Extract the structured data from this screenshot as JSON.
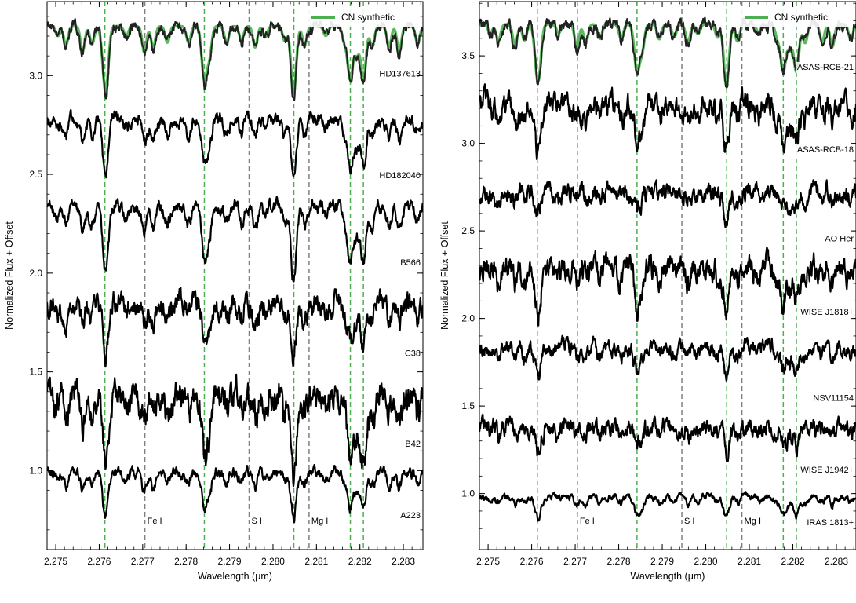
{
  "chart_data": [
    {
      "type": "line",
      "xlabel": "Wavelength (μm)",
      "ylabel": "Normalized Flux + Offset",
      "xlim": [
        2.2748,
        2.28345
      ],
      "ylim": [
        0.6,
        3.375
      ],
      "xticks": [
        2.275,
        2.276,
        2.277,
        2.278,
        2.279,
        2.28,
        2.281,
        2.282,
        2.283
      ],
      "xtick_labels": [
        "2.275",
        "2.276",
        "2.277",
        "2.278",
        "2.279",
        "2.280",
        "2.281",
        "2.282",
        "2.283"
      ],
      "yticks": [
        1.0,
        1.5,
        2.0,
        2.5,
        3.0
      ],
      "ytick_labels": [
        "1.0",
        "1.5",
        "2.0",
        "2.5",
        "3.0"
      ],
      "legend": {
        "label": "CN synthetic",
        "color": "#4caf50",
        "placement": "top-right"
      },
      "cn_lines": [
        2.27613,
        2.27842,
        2.28048,
        2.28178,
        2.28208
      ],
      "atomic_lines": [
        {
          "label": "Fe I",
          "wavelength": 2.27705
        },
        {
          "label": "S I",
          "wavelength": 2.27945
        },
        {
          "label": "Mg I",
          "wavelength": 2.28083
        }
      ],
      "series": [
        {
          "name": "HD137613",
          "offset": 3.25,
          "noise": 0.04,
          "depth": 0.32,
          "label_at": 2.995
        },
        {
          "name": "HD182040",
          "offset": 2.78,
          "noise": 0.05,
          "depth": 0.27,
          "label_at": 2.48
        },
        {
          "name": "B566",
          "offset": 2.34,
          "noise": 0.05,
          "depth": 0.32,
          "label_at": 2.04
        },
        {
          "name": "C38",
          "offset": 1.84,
          "noise": 0.09,
          "depth": 0.22,
          "label_at": 1.58
        },
        {
          "name": "B42",
          "offset": 1.38,
          "noise": 0.12,
          "depth": 0.35,
          "label_at": 1.12
        },
        {
          "name": "A223",
          "offset": 0.99,
          "noise": 0.04,
          "depth": 0.2,
          "label_at": 0.76
        }
      ],
      "synthetic": {
        "offset": 3.25,
        "depth": 0.3
      }
    },
    {
      "type": "line",
      "xlabel": "Wavelength (μm)",
      "ylabel": "Normalized Flux + Offset",
      "xlim": [
        2.2748,
        2.28345
      ],
      "ylim": [
        0.68,
        3.81
      ],
      "xticks": [
        2.275,
        2.276,
        2.277,
        2.278,
        2.279,
        2.28,
        2.281,
        2.282,
        2.283
      ],
      "xtick_labels": [
        "2.275",
        "2.276",
        "2.277",
        "2.278",
        "2.279",
        "2.280",
        "2.281",
        "2.282",
        "2.283"
      ],
      "yticks": [
        1.0,
        1.5,
        2.0,
        2.5,
        3.0,
        3.5
      ],
      "ytick_labels": [
        "1.0",
        "1.5",
        "2.0",
        "2.5",
        "3.0",
        "3.5"
      ],
      "legend": {
        "label": "CN synthetic",
        "color": "#4caf50",
        "placement": "top-right"
      },
      "cn_lines": [
        2.27613,
        2.27842,
        2.28048,
        2.28178,
        2.28208
      ],
      "atomic_lines": [
        {
          "label": "Fe I",
          "wavelength": 2.27705
        },
        {
          "label": "S I",
          "wavelength": 2.27945
        },
        {
          "label": "Mg I",
          "wavelength": 2.28083
        }
      ],
      "series": [
        {
          "name": "ASAS-RCB-21",
          "offset": 3.68,
          "noise": 0.05,
          "depth": 0.3,
          "label_at": 3.42
        },
        {
          "name": "ASAS-RCB-18",
          "offset": 3.22,
          "noise": 0.1,
          "depth": 0.25,
          "label_at": 2.95
        },
        {
          "name": "AO Her",
          "offset": 2.72,
          "noise": 0.08,
          "depth": 0.12,
          "label_at": 2.44
        },
        {
          "name": "WISE J1818+",
          "offset": 2.3,
          "noise": 0.11,
          "depth": 0.25,
          "label_at": 2.02
        },
        {
          "name": "NSV11154",
          "offset": 1.84,
          "noise": 0.07,
          "depth": 0.15,
          "label_at": 1.53
        },
        {
          "name": "WISE J1942+",
          "offset": 1.38,
          "noise": 0.08,
          "depth": 0.12,
          "label_at": 1.12
        },
        {
          "name": "IRAS 1813+",
          "offset": 0.98,
          "noise": 0.03,
          "depth": 0.11,
          "label_at": 0.82
        }
      ],
      "synthetic": {
        "offset": 3.68,
        "depth": 0.3
      }
    }
  ]
}
